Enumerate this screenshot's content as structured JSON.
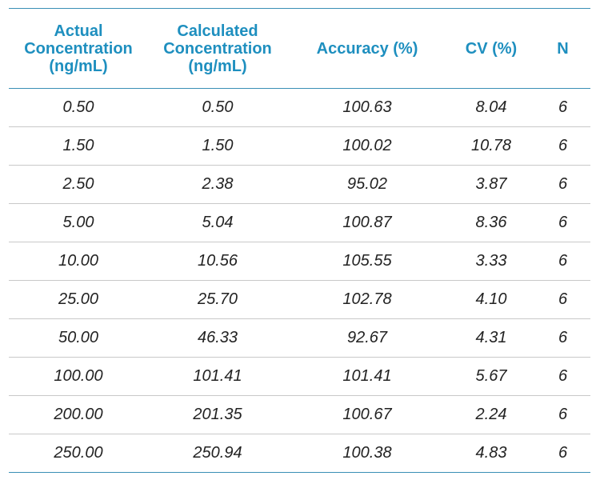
{
  "table": {
    "headers": [
      "Actual\nConcentration\n(ng/mL)",
      "Calculated\nConcentration\n(ng/mL)",
      "Accuracy (%)",
      "CV (%)",
      "N"
    ],
    "rows": [
      [
        "0.50",
        "0.50",
        "100.63",
        "8.04",
        "6"
      ],
      [
        "1.50",
        "1.50",
        "100.02",
        "10.78",
        "6"
      ],
      [
        "2.50",
        "2.38",
        "95.02",
        "3.87",
        "6"
      ],
      [
        "5.00",
        "5.04",
        "100.87",
        "8.36",
        "6"
      ],
      [
        "10.00",
        "10.56",
        "105.55",
        "3.33",
        "6"
      ],
      [
        "25.00",
        "25.70",
        "102.78",
        "4.10",
        "6"
      ],
      [
        "50.00",
        "46.33",
        "92.67",
        "4.31",
        "6"
      ],
      [
        "100.00",
        "101.41",
        "101.41",
        "5.67",
        "6"
      ],
      [
        "200.00",
        "201.35",
        "100.67",
        "2.24",
        "6"
      ],
      [
        "250.00",
        "250.94",
        "100.38",
        "4.83",
        "6"
      ]
    ]
  },
  "colors": {
    "header_text": "#1e8fbf",
    "rule": "#3a8fb5",
    "row_divider": "#c9c9c9",
    "body_text": "#222222"
  }
}
